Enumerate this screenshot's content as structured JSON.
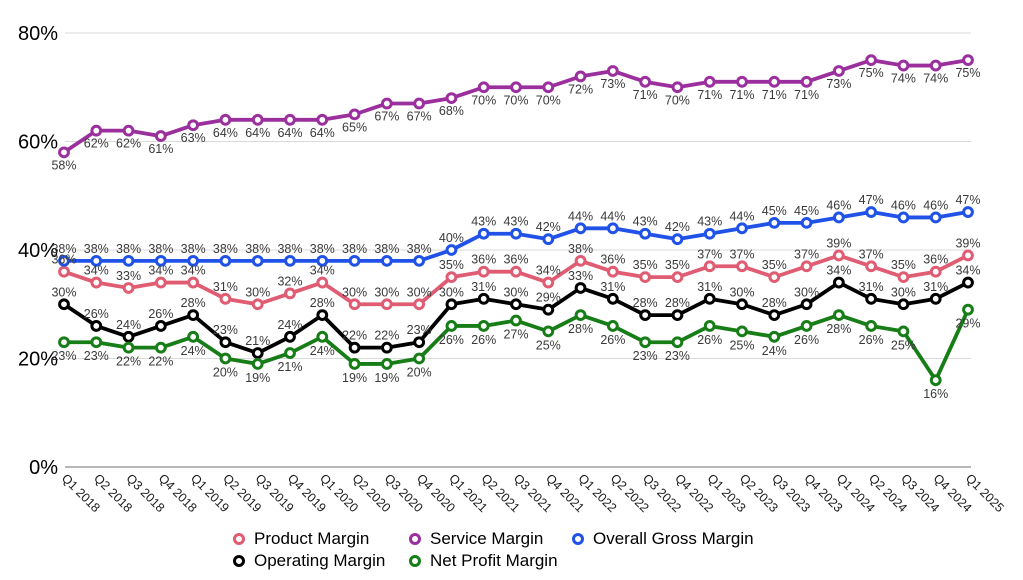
{
  "chart_data": {
    "type": "line",
    "categories": [
      "Q1 2018",
      "Q2 2018",
      "Q3 2018",
      "Q4 2018",
      "Q1 2019",
      "Q2 2019",
      "Q3 2019",
      "Q4 2019",
      "Q1 2020",
      "Q2 2020",
      "Q3 2020",
      "Q4 2020",
      "Q1 2021",
      "Q2 2021",
      "Q3 2021",
      "Q4 2021",
      "Q1 2022",
      "Q2 2022",
      "Q3 2022",
      "Q4 2022",
      "Q1 2023",
      "Q2 2023",
      "Q3 2023",
      "Q4 2023",
      "Q1 2024",
      "Q2 2024",
      "Q3 2024",
      "Q4 2024",
      "Q1 2025"
    ],
    "series": [
      {
        "name": "Product Margin",
        "color": "#e05c72",
        "values": [
          36,
          34,
          33,
          34,
          34,
          31,
          30,
          32,
          34,
          30,
          30,
          30,
          35,
          36,
          36,
          34,
          38,
          36,
          35,
          35,
          37,
          37,
          35,
          37,
          39,
          37,
          35,
          36,
          39
        ]
      },
      {
        "name": "Service Margin",
        "color": "#9b2f9e",
        "values": [
          58,
          62,
          62,
          61,
          63,
          64,
          64,
          64,
          64,
          65,
          67,
          67,
          68,
          70,
          70,
          70,
          72,
          73,
          71,
          70,
          71,
          71,
          71,
          71,
          73,
          75,
          74,
          74,
          75
        ]
      },
      {
        "name": "Overall Gross Margin",
        "color": "#2052e8",
        "values": [
          38,
          38,
          38,
          38,
          38,
          38,
          38,
          38,
          38,
          38,
          38,
          38,
          40,
          43,
          43,
          42,
          44,
          44,
          43,
          42,
          43,
          44,
          45,
          45,
          46,
          47,
          46,
          46,
          47
        ]
      },
      {
        "name": "Operating Margin",
        "color": "#000000",
        "values": [
          30,
          26,
          24,
          26,
          28,
          23,
          21,
          24,
          28,
          22,
          22,
          23,
          30,
          31,
          30,
          29,
          33,
          31,
          28,
          28,
          31,
          30,
          28,
          30,
          34,
          31,
          30,
          31,
          34
        ]
      },
      {
        "name": "Net Profit Margin",
        "color": "#177d17",
        "values": [
          23,
          23,
          22,
          22,
          24,
          20,
          19,
          21,
          24,
          19,
          19,
          20,
          26,
          26,
          27,
          25,
          28,
          26,
          23,
          23,
          26,
          25,
          24,
          26,
          28,
          26,
          25,
          16,
          29
        ]
      }
    ],
    "y_ticks": {
      "values": [
        0,
        20,
        40,
        60,
        80
      ],
      "labels": [
        "0%",
        "20%",
        "40%",
        "60%",
        "80%"
      ]
    },
    "ylim": [
      0,
      80
    ],
    "label_format": "percent",
    "grid": true,
    "legend_position": "bottom",
    "title": "",
    "xlabel": "",
    "ylabel": ""
  }
}
